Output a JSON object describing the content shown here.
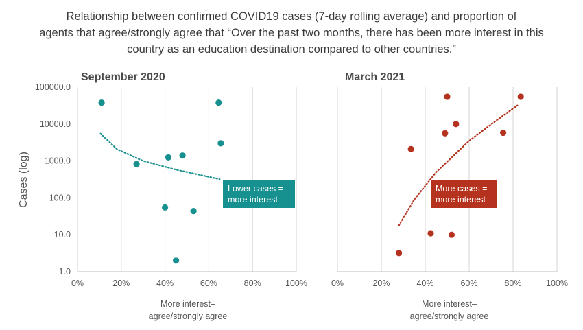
{
  "title": {
    "line1": "Relationship between confirmed COVID19 cases (7-day rolling average) and proportion of",
    "line2": "agents that agree/strongly agree that “Over the past two months, there has been more interest in this",
    "line3": "country as an education destination compared to other countries.”"
  },
  "ylabel": "Cases (log)",
  "xlabel": [
    "More interest–",
    "agree/strongly agree"
  ],
  "chart_data": [
    {
      "type": "scatter",
      "title": "September 2020",
      "color": "#17918f",
      "xlim": [
        0,
        100
      ],
      "ylim": [
        1,
        100000
      ],
      "yscale": "log",
      "x_ticks": [
        "0%",
        "20%",
        "40%",
        "60%",
        "80%",
        "100%"
      ],
      "y_ticks": [
        "100000.0",
        "10000.0",
        "1000.0",
        "100.0",
        "10.0",
        "1.0"
      ],
      "points": [
        {
          "x": 11,
          "y": 38000
        },
        {
          "x": 27,
          "y": 820
        },
        {
          "x": 40,
          "y": 55
        },
        {
          "x": 41.5,
          "y": 1250
        },
        {
          "x": 45,
          "y": 2
        },
        {
          "x": 48,
          "y": 1400
        },
        {
          "x": 53,
          "y": 44
        },
        {
          "x": 64.5,
          "y": 38000
        },
        {
          "x": 65.5,
          "y": 3000
        }
      ],
      "trendline": [
        {
          "x": 10.5,
          "y": 5500
        },
        {
          "x": 18,
          "y": 2100
        },
        {
          "x": 30,
          "y": 1000
        },
        {
          "x": 45,
          "y": 580
        },
        {
          "x": 65,
          "y": 320
        }
      ],
      "annotation": [
        "Lower cases =",
        "more interest"
      ]
    },
    {
      "type": "scatter",
      "title": "March 2021",
      "color": "#b5321e",
      "xlim": [
        0,
        100
      ],
      "ylim": [
        1,
        100000
      ],
      "yscale": "log",
      "x_ticks": [
        "0%",
        "20%",
        "40%",
        "60%",
        "80%",
        "100%"
      ],
      "y_ticks": [],
      "points": [
        {
          "x": 28,
          "y": 3.2
        },
        {
          "x": 33.5,
          "y": 2100
        },
        {
          "x": 42.5,
          "y": 11
        },
        {
          "x": 49,
          "y": 5600
        },
        {
          "x": 50,
          "y": 55000
        },
        {
          "x": 52,
          "y": 10
        },
        {
          "x": 54,
          "y": 10000
        },
        {
          "x": 75.5,
          "y": 5800
        },
        {
          "x": 83.5,
          "y": 55000
        }
      ],
      "trendline": [
        {
          "x": 28,
          "y": 18
        },
        {
          "x": 35,
          "y": 90
        },
        {
          "x": 45,
          "y": 500
        },
        {
          "x": 60,
          "y": 3500
        },
        {
          "x": 72,
          "y": 12000
        },
        {
          "x": 82,
          "y": 32000
        }
      ],
      "annotation": [
        "More cases =",
        "more interest"
      ]
    }
  ]
}
